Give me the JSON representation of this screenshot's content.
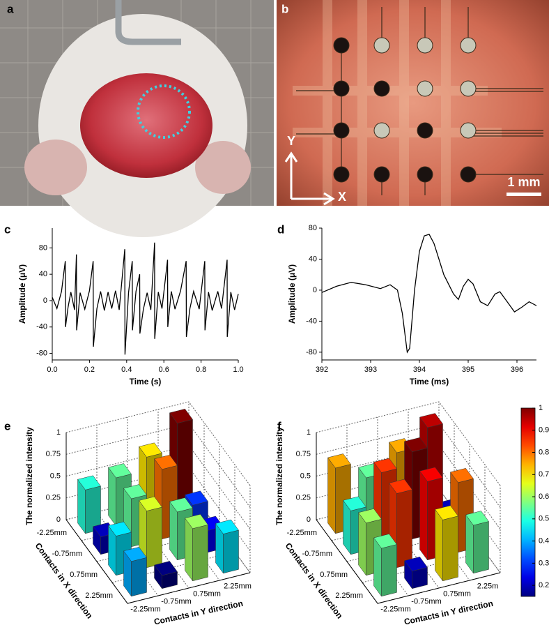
{
  "panel_labels": [
    "a",
    "b",
    "c",
    "d",
    "e",
    "f"
  ],
  "photo_b": {
    "y_arrow": "Y",
    "x_arrow": "X",
    "scale_bar": "1 mm"
  },
  "colorbar": {
    "clim": [
      0.15,
      1
    ],
    "ticks": [
      0.2,
      0.3,
      0.4,
      0.5,
      0.6,
      0.7,
      0.8,
      0.9,
      1
    ]
  },
  "chart_data": [
    {
      "type": "line",
      "x_label": "Time (s)",
      "y_label": "Amplitude (μV)",
      "color": "#000000",
      "x": [
        0,
        0.025,
        0.05,
        0.07,
        0.071,
        0.085,
        0.1,
        0.12,
        0.13,
        0.131,
        0.15,
        0.175,
        0.2,
        0.22,
        0.221,
        0.24,
        0.26,
        0.28,
        0.3,
        0.32,
        0.34,
        0.36,
        0.39,
        0.391,
        0.41,
        0.43,
        0.431,
        0.45,
        0.47,
        0.471,
        0.49,
        0.51,
        0.53,
        0.55,
        0.551,
        0.57,
        0.59,
        0.62,
        0.621,
        0.64,
        0.66,
        0.69,
        0.72,
        0.721,
        0.74,
        0.76,
        0.79,
        0.82,
        0.821,
        0.84,
        0.86,
        0.89,
        0.91,
        0.94,
        0.941,
        0.96,
        0.98,
        1.0
      ],
      "values": [
        5,
        -12,
        14,
        60,
        -40,
        -10,
        13,
        -14,
        70,
        -45,
        12,
        -13,
        15,
        60,
        -70,
        -12,
        14,
        -15,
        13,
        -12,
        15,
        -14,
        78,
        -82,
        12,
        60,
        -45,
        14,
        40,
        -50,
        -13,
        12,
        -14,
        88,
        -58,
        13,
        -12,
        62,
        -40,
        14,
        -13,
        15,
        60,
        -55,
        -12,
        14,
        -13,
        60,
        -45,
        13,
        -15,
        14,
        -12,
        62,
        -55,
        13,
        -14,
        10
      ],
      "xlim": [
        0,
        1
      ],
      "ylim": [
        -90,
        110
      ],
      "xticks": [
        {
          "value": 0,
          "label": "0.0"
        },
        0.2,
        0.4,
        0.6,
        0.8,
        {
          "value": 1,
          "label": "1.0"
        }
      ],
      "yticks": [
        -80,
        -40,
        0,
        40,
        80
      ]
    },
    {
      "type": "line",
      "x_label": "Time (ms)",
      "y_label": "Amplitude (μV)",
      "color": "#000000",
      "x": [
        392,
        392.3,
        392.6,
        392.9,
        393.2,
        393.4,
        393.55,
        393.65,
        393.75,
        393.8,
        393.9,
        394.0,
        394.1,
        394.2,
        394.3,
        394.5,
        394.7,
        394.8,
        394.9,
        395.0,
        395.1,
        395.25,
        395.4,
        395.55,
        395.65,
        395.8,
        395.95,
        396.1,
        396.25,
        396.4
      ],
      "values": [
        -3,
        5,
        10,
        7,
        2,
        7,
        0,
        -30,
        -80,
        -75,
        0,
        50,
        70,
        72,
        60,
        20,
        -5,
        -12,
        5,
        14,
        8,
        -15,
        -20,
        -5,
        -2,
        -15,
        -28,
        -22,
        -15,
        -20
      ],
      "xlim": [
        392,
        396.4
      ],
      "ylim": [
        -90,
        80
      ],
      "xticks": [
        392,
        393,
        394,
        395,
        396
      ],
      "yticks": [
        -80,
        -40,
        0,
        40,
        80
      ]
    },
    {
      "type": "bar3d",
      "x_label": "Contacts in X direction",
      "y_label": "Contacts in Y direction",
      "z_label": "The normalized intensity",
      "x_categories": [
        "-2.25mm",
        "-0.75mm",
        "0.75mm",
        "2.25mm"
      ],
      "y_categories": [
        "-2.25mm",
        "-0.75mm",
        "0.75mm",
        "2.25mm"
      ],
      "values": [
        [
          0.5,
          0.55,
          0.7,
          1.0
        ],
        [
          0.2,
          0.55,
          0.8,
          0.3
        ],
        [
          0.45,
          0.65,
          0.55,
          0.25
        ],
        [
          0.4,
          0.15,
          0.6,
          0.45
        ]
      ],
      "zlim": [
        0,
        1
      ],
      "zticks": [
        0,
        0.25,
        0.5,
        0.75,
        1
      ]
    },
    {
      "type": "bar3d",
      "x_label": "Contacts in X direction",
      "y_label": "Contacts in Y direction",
      "z_label": "The normalized intensity",
      "x_categories": [
        "-2.25mm",
        "-0.75mm",
        "0.75mm",
        "2.25mm"
      ],
      "y_categories": [
        "-2.25mm",
        "-0.75mm",
        "0.75mm",
        "2.25m"
      ],
      "values": [
        [
          0.75,
          0.55,
          0.75,
          0.95
        ],
        [
          0.5,
          0.85,
          1.0,
          0.2
        ],
        [
          0.6,
          0.85,
          0.9,
          0.8
        ],
        [
          0.55,
          0.2,
          0.7,
          0.55
        ]
      ],
      "zlim": [
        0,
        1
      ],
      "zticks": [
        0,
        0.25,
        0.5,
        0.75,
        1
      ]
    }
  ]
}
